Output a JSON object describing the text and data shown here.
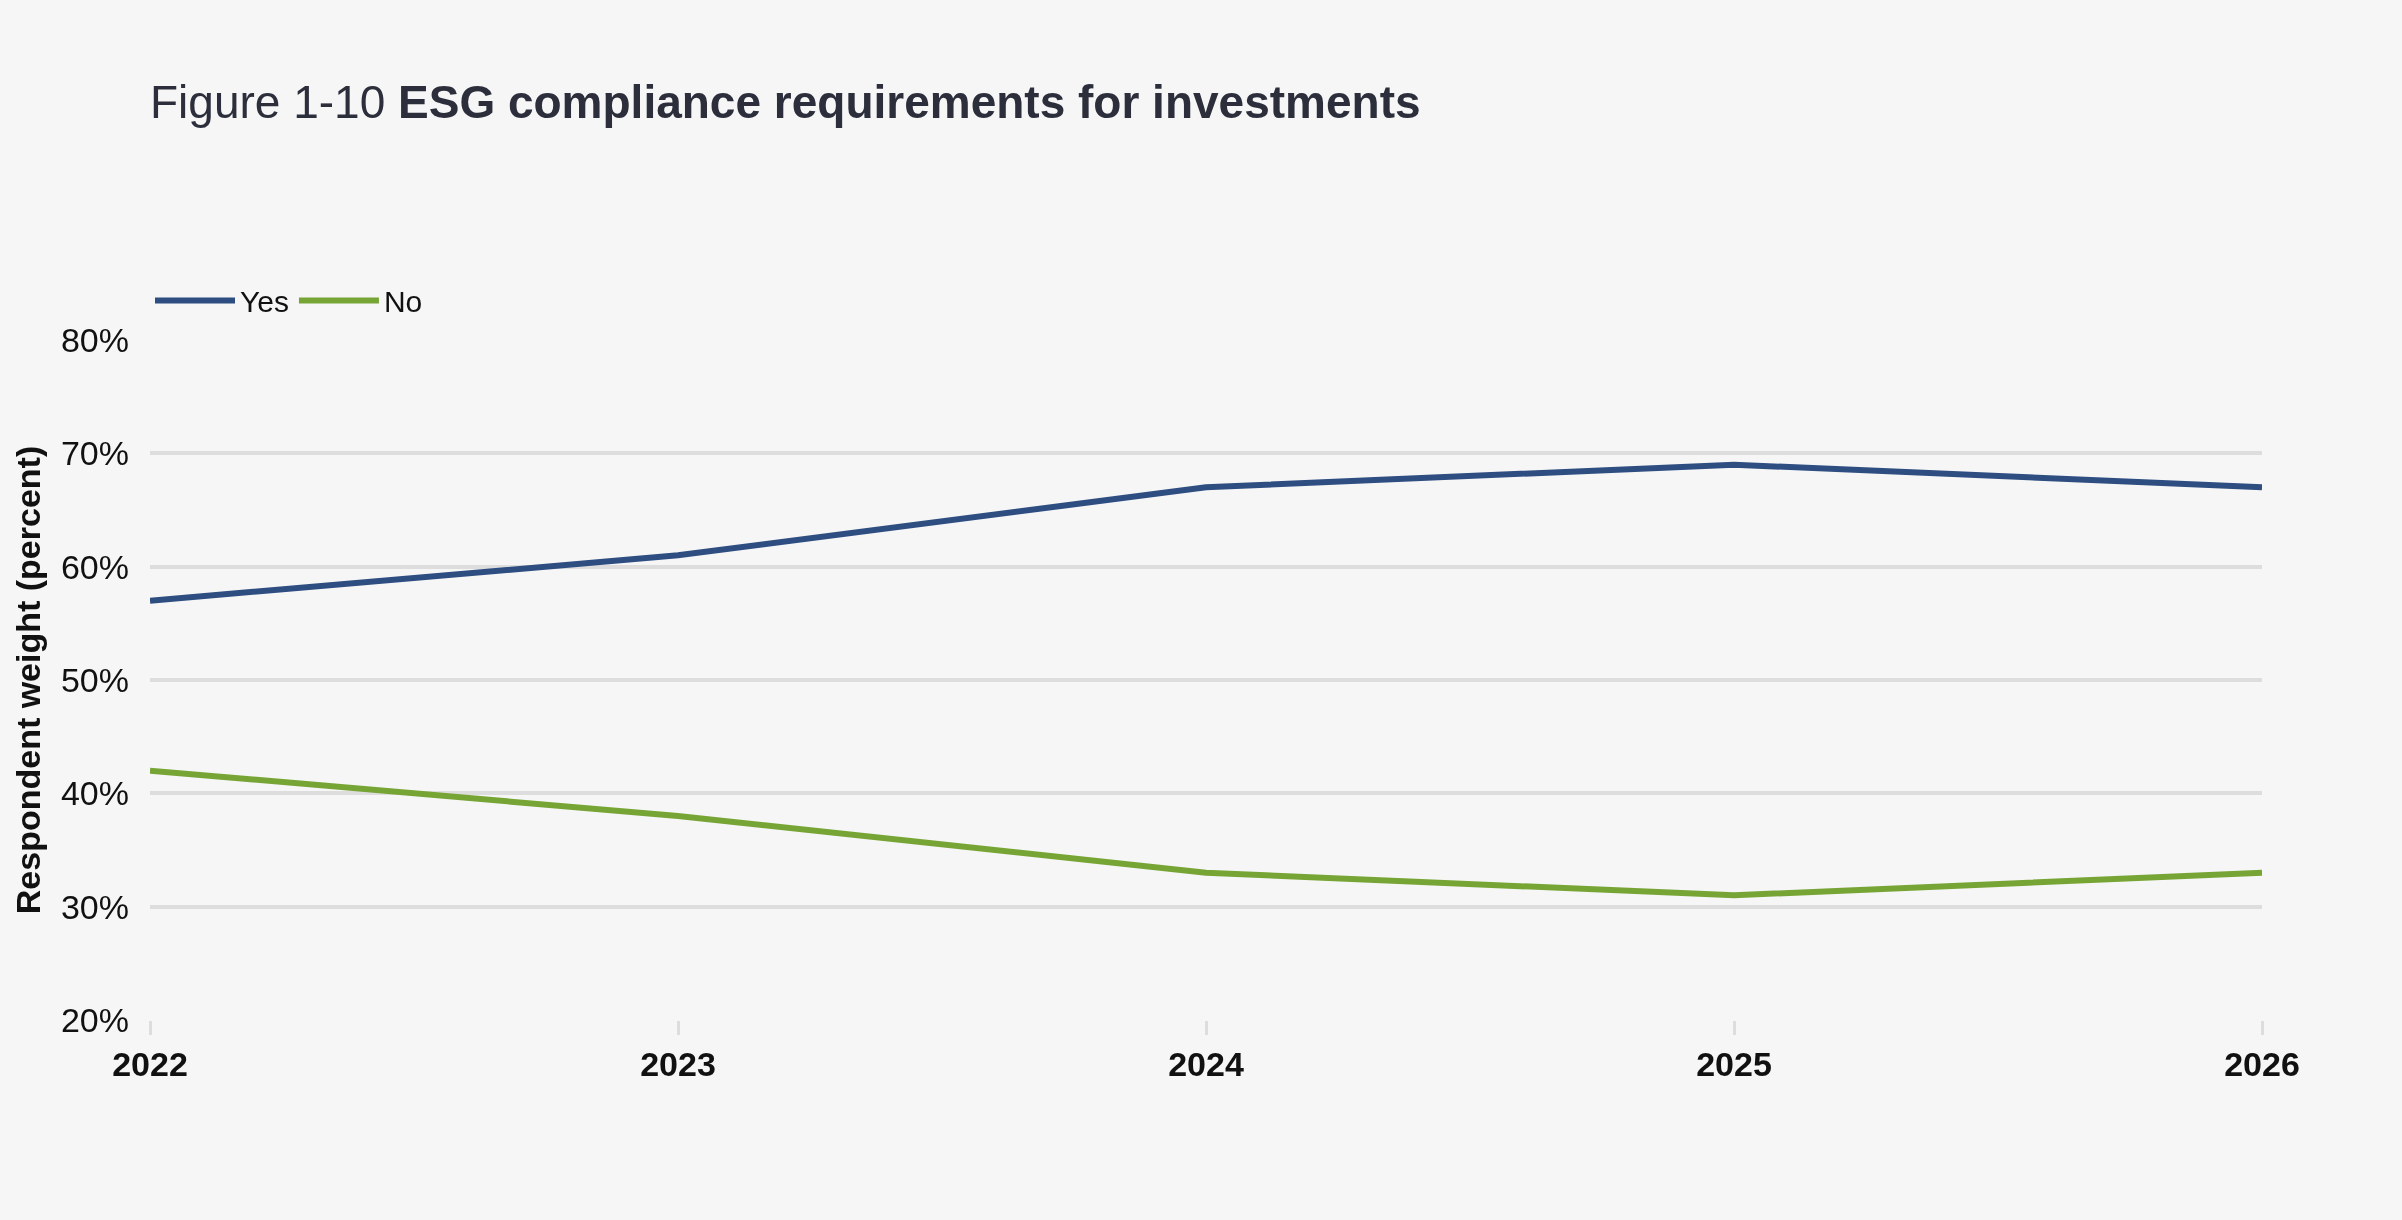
{
  "chart_data": {
    "type": "line",
    "title": "Figure 1-10 ESG compliance requirements for investments",
    "ylabel": "Respondent weight (percent)",
    "categories": [
      "2022",
      "2023",
      "2024",
      "2025",
      "2026"
    ],
    "series": [
      {
        "name": "Yes",
        "color": "#2e4d80",
        "values": [
          57,
          61,
          67,
          69,
          67
        ]
      },
      {
        "name": "No",
        "color": "#77a535",
        "values": [
          42,
          38,
          33,
          31,
          33
        ]
      }
    ],
    "ylim": [
      20,
      80
    ],
    "yticks": [
      {
        "value": 20,
        "label": "20%"
      },
      {
        "value": 30,
        "label": "30%"
      },
      {
        "value": 40,
        "label": "40%"
      },
      {
        "value": 50,
        "label": "50%"
      },
      {
        "value": 60,
        "label": "60%"
      },
      {
        "value": 70,
        "label": "70%"
      },
      {
        "value": 80,
        "label": "80%"
      }
    ],
    "grid": "y",
    "legend": "top left",
    "marker": "none",
    "line_style": "solid"
  }
}
